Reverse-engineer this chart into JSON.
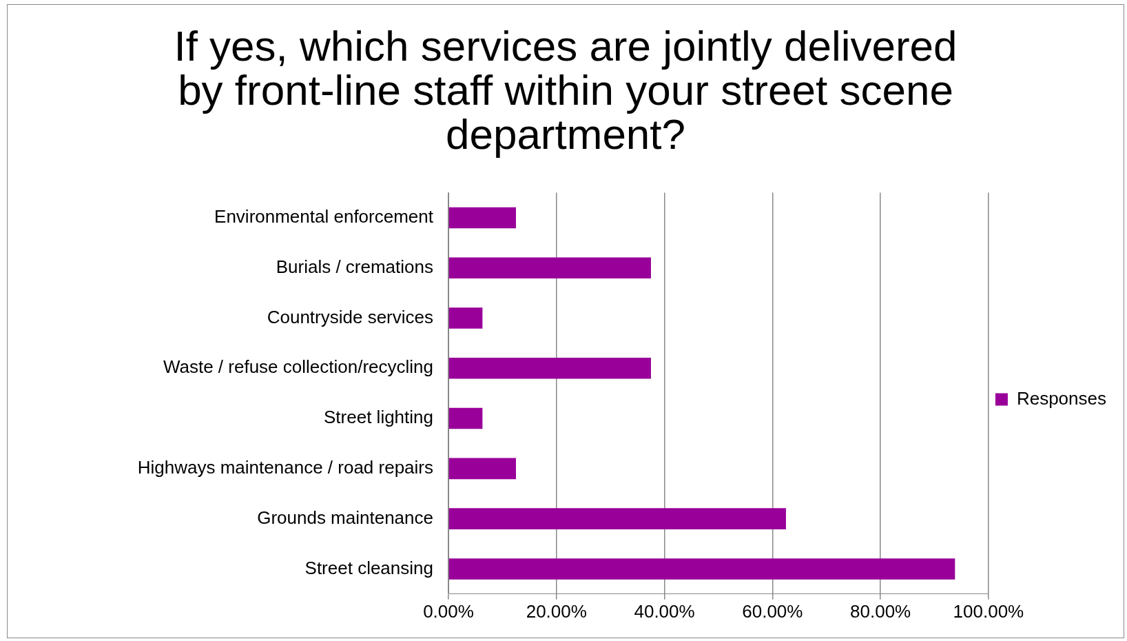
{
  "chart_data": {
    "type": "bar",
    "orientation": "horizontal",
    "title": "If yes, which services are jointly delivered by front-line staff within your street scene department?",
    "categories": [
      "Environmental enforcement",
      "Burials / cremations",
      "Countryside services",
      "Waste / refuse collection/recycling",
      "Street lighting",
      "Highways maintenance / road repairs",
      "Grounds maintenance",
      "Street cleansing"
    ],
    "series": [
      {
        "name": "Responses",
        "color": "#990099",
        "values": [
          12.5,
          37.5,
          6.3,
          37.5,
          6.3,
          12.5,
          62.5,
          93.8
        ]
      }
    ],
    "xlim": [
      0,
      100
    ],
    "xticks": [
      {
        "value": 0,
        "label": "0.00%"
      },
      {
        "value": 20,
        "label": "20.00%"
      },
      {
        "value": 40,
        "label": "40.00%"
      },
      {
        "value": 60,
        "label": "60.00%"
      },
      {
        "value": 80,
        "label": "80.00%"
      },
      {
        "value": 100,
        "label": "100.00%"
      }
    ],
    "grid": "x",
    "legend": "right"
  }
}
